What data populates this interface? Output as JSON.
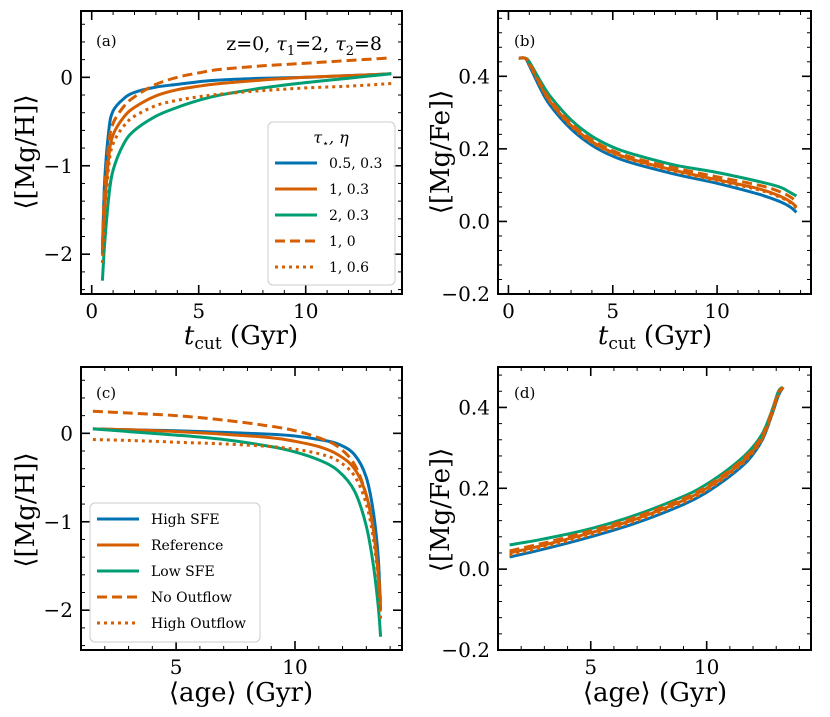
{
  "colors": {
    "blue": "#0072b2",
    "orange": "#d55e00",
    "green": "#009e73"
  },
  "chart_data": [
    {
      "type": "line",
      "panel_label": "(a)",
      "annotation": "z=0, τ1=2, τ2=8",
      "annotation_parts": [
        "z=0, ",
        "τ",
        "1",
        "=2, ",
        "τ",
        "2",
        "=8"
      ],
      "ylabel": "⟨[Mg/H]⟩",
      "xlabel_main": "t",
      "xlabel_sub": "cut",
      "xlabel_unit": " (Gyr)",
      "xlim": [
        -0.5,
        14.5
      ],
      "ylim": [
        -2.45,
        0.75
      ],
      "xticks": [
        0,
        5,
        10
      ],
      "yticks": [
        0,
        -1,
        -2
      ],
      "ytick_labels": [
        "0",
        "−1",
        "−2"
      ],
      "legend_title_parts": [
        "τ",
        "⋆",
        ", η"
      ],
      "series": [
        {
          "name": "0.5, 0.3",
          "style": "solid",
          "color": "#0072b2",
          "x": [
            0.5,
            0.6,
            0.8,
            1,
            1.5,
            2,
            3,
            4,
            5,
            6,
            8,
            10,
            12,
            14
          ],
          "y": [
            -2.0,
            -1.2,
            -0.6,
            -0.38,
            -0.24,
            -0.17,
            -0.11,
            -0.08,
            -0.05,
            -0.03,
            -0.01,
            0.0,
            0.02,
            0.04
          ]
        },
        {
          "name": "1, 0.3",
          "style": "solid",
          "color": "#d55e00",
          "x": [
            0.5,
            0.6,
            0.8,
            1,
            1.5,
            2,
            3,
            4,
            5,
            6,
            8,
            10,
            12,
            14
          ],
          "y": [
            -2.0,
            -1.5,
            -0.9,
            -0.65,
            -0.45,
            -0.34,
            -0.21,
            -0.14,
            -0.1,
            -0.07,
            -0.03,
            0.0,
            0.02,
            0.04
          ]
        },
        {
          "name": "2, 0.3",
          "style": "solid",
          "color": "#009e73",
          "x": [
            0.5,
            0.6,
            0.8,
            1,
            1.5,
            2,
            3,
            4,
            5,
            6,
            8,
            10,
            12,
            14
          ],
          "y": [
            -2.3,
            -1.9,
            -1.35,
            -1.05,
            -0.75,
            -0.6,
            -0.44,
            -0.34,
            -0.26,
            -0.2,
            -0.12,
            -0.06,
            -0.01,
            0.04
          ]
        },
        {
          "name": "1, 0",
          "style": "dashed",
          "color": "#d55e00",
          "x": [
            0.5,
            0.6,
            0.8,
            1,
            1.5,
            2,
            3,
            4,
            5,
            6,
            8,
            10,
            12,
            14
          ],
          "y": [
            -1.9,
            -1.3,
            -0.75,
            -0.52,
            -0.33,
            -0.22,
            -0.08,
            0.0,
            0.05,
            0.09,
            0.13,
            0.16,
            0.19,
            0.22
          ]
        },
        {
          "name": "1, 0.6",
          "style": "dotted",
          "color": "#d55e00",
          "x": [
            0.5,
            0.6,
            0.8,
            1,
            1.5,
            2,
            3,
            4,
            5,
            6,
            8,
            10,
            12,
            14
          ],
          "y": [
            -2.1,
            -1.6,
            -1.0,
            -0.75,
            -0.55,
            -0.44,
            -0.32,
            -0.26,
            -0.22,
            -0.19,
            -0.15,
            -0.12,
            -0.1,
            -0.07
          ]
        }
      ]
    },
    {
      "type": "line",
      "panel_label": "(b)",
      "ylabel": "⟨[Mg/Fe]⟩",
      "xlabel_main": "t",
      "xlabel_sub": "cut",
      "xlabel_unit": " (Gyr)",
      "xlim": [
        -0.5,
        14.5
      ],
      "ylim": [
        -0.2,
        0.58
      ],
      "xticks": [
        0,
        5,
        10
      ],
      "yticks": [
        0.4,
        0.2,
        0.0,
        -0.2
      ],
      "ytick_labels": [
        "0.4",
        "0.2",
        "0.0",
        "−0.2"
      ],
      "series": [
        {
          "name": "0.5, 0.3",
          "style": "solid",
          "color": "#0072b2",
          "x": [
            0.5,
            0.8,
            1,
            1.5,
            2,
            3,
            4,
            5,
            6,
            8,
            10,
            12,
            13,
            13.5,
            13.8
          ],
          "y": [
            0.45,
            0.45,
            0.43,
            0.37,
            0.32,
            0.255,
            0.21,
            0.18,
            0.16,
            0.13,
            0.105,
            0.075,
            0.055,
            0.04,
            0.025
          ]
        },
        {
          "name": "1, 0.3",
          "style": "solid",
          "color": "#d55e00",
          "x": [
            0.5,
            0.8,
            1,
            1.5,
            2,
            3,
            4,
            5,
            6,
            8,
            10,
            12,
            13,
            13.5,
            13.8
          ],
          "y": [
            0.45,
            0.45,
            0.435,
            0.38,
            0.33,
            0.265,
            0.22,
            0.19,
            0.17,
            0.14,
            0.115,
            0.09,
            0.07,
            0.055,
            0.04
          ]
        },
        {
          "name": "2, 0.3",
          "style": "solid",
          "color": "#009e73",
          "x": [
            0.5,
            0.8,
            1,
            1.5,
            2,
            3,
            4,
            5,
            6,
            8,
            10,
            12,
            13,
            13.5,
            13.8
          ],
          "y": [
            0.45,
            0.45,
            0.44,
            0.39,
            0.345,
            0.28,
            0.235,
            0.205,
            0.185,
            0.155,
            0.135,
            0.11,
            0.095,
            0.08,
            0.07
          ]
        },
        {
          "name": "1, 0",
          "style": "dashed",
          "color": "#d55e00",
          "x": [
            0.5,
            0.8,
            1,
            1.5,
            2,
            3,
            4,
            5,
            6,
            8,
            10,
            12,
            13,
            13.5,
            13.8
          ],
          "y": [
            0.45,
            0.45,
            0.437,
            0.383,
            0.335,
            0.27,
            0.225,
            0.195,
            0.175,
            0.147,
            0.123,
            0.1,
            0.082,
            0.068,
            0.055
          ]
        },
        {
          "name": "1, 0.6",
          "style": "dotted",
          "color": "#d55e00",
          "x": [
            0.5,
            0.8,
            1,
            1.5,
            2,
            3,
            4,
            5,
            6,
            8,
            10,
            12,
            13,
            13.5,
            13.8
          ],
          "y": [
            0.45,
            0.45,
            0.433,
            0.378,
            0.328,
            0.262,
            0.217,
            0.187,
            0.167,
            0.137,
            0.112,
            0.087,
            0.067,
            0.052,
            0.037
          ]
        }
      ]
    },
    {
      "type": "line",
      "panel_label": "(c)",
      "ylabel": "⟨[Mg/H]⟩",
      "xlabel_main": "⟨age⟩ (Gyr)",
      "xlim": [
        1.0,
        14.5
      ],
      "ylim": [
        -2.45,
        0.75
      ],
      "xticks": [
        5,
        10
      ],
      "yticks": [
        0,
        -1,
        -2
      ],
      "ytick_labels": [
        "0",
        "−1",
        "−2"
      ],
      "series": [
        {
          "name": "High SFE",
          "style": "solid",
          "color": "#0072b2",
          "x": [
            1.5,
            3,
            5,
            7,
            9,
            10,
            11,
            11.8,
            12.5,
            13,
            13.3,
            13.5,
            13.6
          ],
          "y": [
            0.05,
            0.04,
            0.03,
            0.01,
            -0.01,
            -0.03,
            -0.07,
            -0.12,
            -0.24,
            -0.5,
            -0.9,
            -1.4,
            -2.0
          ]
        },
        {
          "name": "Reference",
          "style": "solid",
          "color": "#d55e00",
          "x": [
            1.5,
            3,
            5,
            7,
            9,
            10,
            11,
            11.8,
            12.5,
            13,
            13.3,
            13.5,
            13.6
          ],
          "y": [
            0.05,
            0.04,
            0.02,
            -0.01,
            -0.05,
            -0.09,
            -0.15,
            -0.24,
            -0.4,
            -0.7,
            -1.1,
            -1.6,
            -2.0
          ]
        },
        {
          "name": "Low SFE",
          "style": "solid",
          "color": "#009e73",
          "x": [
            1.5,
            3,
            5,
            7,
            9,
            10,
            11,
            11.8,
            12.5,
            13,
            13.3,
            13.5,
            13.6
          ],
          "y": [
            0.05,
            0.02,
            -0.02,
            -0.07,
            -0.15,
            -0.21,
            -0.3,
            -0.42,
            -0.65,
            -1.05,
            -1.5,
            -1.95,
            -2.3
          ]
        },
        {
          "name": "No Outflow",
          "style": "dashed",
          "color": "#d55e00",
          "x": [
            1.5,
            3,
            5,
            7,
            9,
            10,
            11,
            11.8,
            12.5,
            13,
            13.3,
            13.5,
            13.6
          ],
          "y": [
            0.25,
            0.23,
            0.2,
            0.15,
            0.08,
            0.03,
            -0.05,
            -0.15,
            -0.35,
            -0.7,
            -1.1,
            -1.55,
            -1.9
          ]
        },
        {
          "name": "High Outflow",
          "style": "dotted",
          "color": "#d55e00",
          "x": [
            1.5,
            3,
            5,
            7,
            9,
            10,
            11,
            11.8,
            12.5,
            13,
            13.3,
            13.5,
            13.6
          ],
          "y": [
            -0.07,
            -0.08,
            -0.1,
            -0.12,
            -0.15,
            -0.18,
            -0.23,
            -0.31,
            -0.48,
            -0.8,
            -1.2,
            -1.65,
            -2.1
          ]
        }
      ]
    },
    {
      "type": "line",
      "panel_label": "(d)",
      "ylabel": "⟨[Mg/Fe]⟩",
      "xlabel_main": "⟨age⟩ (Gyr)",
      "xlim": [
        1.0,
        14.5
      ],
      "ylim": [
        -0.2,
        0.5
      ],
      "xticks": [
        5,
        10
      ],
      "yticks": [
        0.4,
        0.2,
        0.0,
        -0.2
      ],
      "ytick_labels": [
        "0.4",
        "0.2",
        "0.0",
        "−0.2"
      ],
      "series": [
        {
          "name": "High SFE",
          "style": "solid",
          "color": "#0072b2",
          "x": [
            1.5,
            3,
            5,
            7,
            9,
            10,
            11,
            11.8,
            12.4,
            12.8,
            13.1,
            13.3
          ],
          "y": [
            0.03,
            0.05,
            0.08,
            0.115,
            0.16,
            0.19,
            0.23,
            0.27,
            0.32,
            0.38,
            0.43,
            0.45
          ]
        },
        {
          "name": "Reference",
          "style": "solid",
          "color": "#d55e00",
          "x": [
            1.5,
            3,
            5,
            7,
            9,
            10,
            11,
            11.8,
            12.4,
            12.8,
            13.1,
            13.3
          ],
          "y": [
            0.04,
            0.06,
            0.09,
            0.125,
            0.17,
            0.2,
            0.24,
            0.28,
            0.325,
            0.385,
            0.435,
            0.45
          ]
        },
        {
          "name": "Low SFE",
          "style": "solid",
          "color": "#009e73",
          "x": [
            1.5,
            3,
            5,
            7,
            9,
            10,
            11,
            11.8,
            12.4,
            12.8,
            13.1,
            13.3
          ],
          "y": [
            0.06,
            0.075,
            0.1,
            0.135,
            0.18,
            0.21,
            0.25,
            0.29,
            0.335,
            0.39,
            0.44,
            0.45
          ]
        },
        {
          "name": "No Outflow",
          "style": "dashed",
          "color": "#d55e00",
          "x": [
            1.5,
            3,
            5,
            7,
            9,
            10,
            11,
            11.8,
            12.4,
            12.8,
            13.1,
            13.3
          ],
          "y": [
            0.045,
            0.065,
            0.095,
            0.13,
            0.175,
            0.205,
            0.245,
            0.285,
            0.33,
            0.388,
            0.437,
            0.45
          ]
        },
        {
          "name": "High Outflow",
          "style": "dotted",
          "color": "#d55e00",
          "x": [
            1.5,
            3,
            5,
            7,
            9,
            10,
            11,
            11.8,
            12.4,
            12.8,
            13.1,
            13.3
          ],
          "y": [
            0.035,
            0.055,
            0.085,
            0.12,
            0.165,
            0.195,
            0.235,
            0.275,
            0.322,
            0.382,
            0.432,
            0.45
          ]
        }
      ]
    }
  ]
}
